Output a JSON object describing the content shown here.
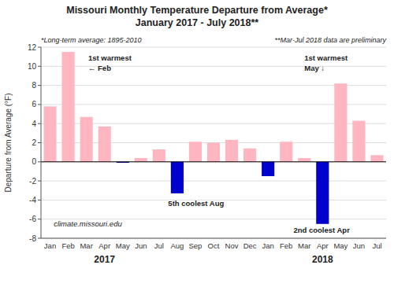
{
  "chart_data": {
    "type": "bar",
    "title": "Missouri Monthly Temperature Departure from Average*",
    "subtitle": "January 2017 - July 2018**",
    "categories": [
      "Jan",
      "Feb",
      "Mar",
      "Apr",
      "May",
      "Jun",
      "Jul",
      "Aug",
      "Sep",
      "Oct",
      "Nov",
      "Dec",
      "Jan",
      "Feb",
      "Mar",
      "Apr",
      "May",
      "Jun",
      "Jul"
    ],
    "values": [
      5.8,
      11.5,
      4.7,
      3.7,
      -0.1,
      0.4,
      1.3,
      -3.3,
      2.1,
      2.0,
      2.3,
      1.4,
      -1.5,
      2.1,
      0.4,
      -6.5,
      8.2,
      4.3,
      0.7
    ],
    "colors": [
      "#FFB6C1",
      "#FFB6C1",
      "#FFB6C1",
      "#FFB6C1",
      "#0000CC",
      "#FFB6C1",
      "#FFB6C1",
      "#0000CC",
      "#FFB6C1",
      "#FFB6C1",
      "#FFB6C1",
      "#FFB6C1",
      "#0000CC",
      "#FFB6C1",
      "#FFB6C1",
      "#0000CC",
      "#FFB6C1",
      "#FFB6C1",
      "#FFB6C1"
    ],
    "y_label": "Departure from Average (°F)",
    "ylim": [
      -8,
      12
    ],
    "yticks": [
      -8,
      -6,
      -4,
      -2,
      0,
      2,
      4,
      6,
      8,
      10,
      12
    ],
    "grid": true,
    "annotations": [
      "*Long-term average: 1895-2010",
      "**Mar-Jul 2018 data are preliminary",
      "1st warmest",
      "← Feb",
      "1st warmest",
      "May  ↓",
      "5th coolest Aug",
      "2nd coolest Apr",
      "climate.missouri.edu",
      "2017",
      "2018"
    ]
  }
}
